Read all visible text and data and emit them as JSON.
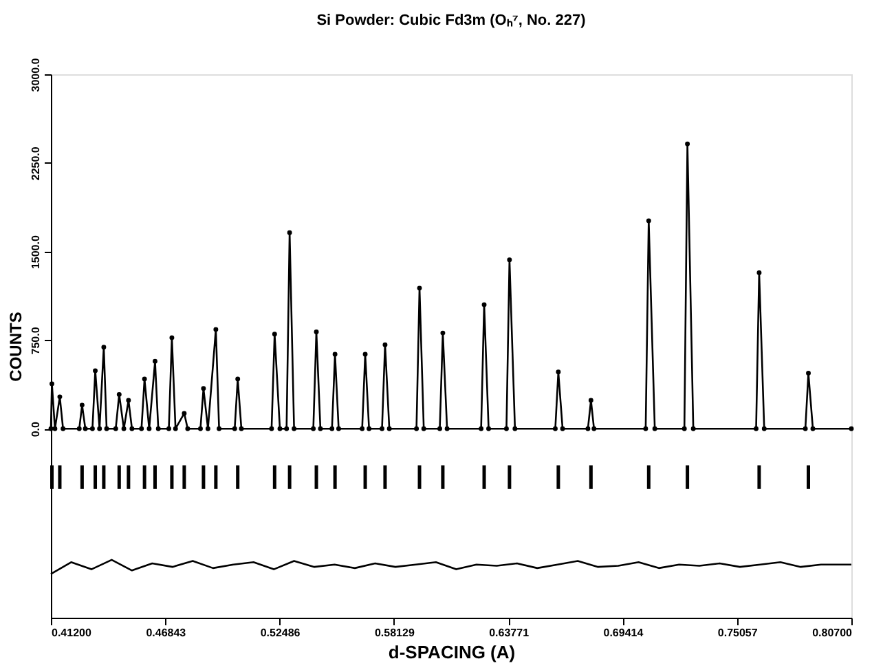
{
  "chart_data": {
    "type": "line",
    "title": "Si Powder:  Cubic Fd3m (Oₕ⁷, No. 227)",
    "xlabel": "d-SPACING (A)",
    "ylabel": "COUNTS",
    "xlim": [
      0.412,
      0.807
    ],
    "ylim": [
      -1600,
      3000
    ],
    "xticks": [
      {
        "value": 0.412,
        "label": "0.41200"
      },
      {
        "value": 0.46843,
        "label": "0.46843"
      },
      {
        "value": 0.52486,
        "label": "0.52486"
      },
      {
        "value": 0.58129,
        "label": "0.58129"
      },
      {
        "value": 0.63771,
        "label": "0.63771"
      },
      {
        "value": 0.69414,
        "label": "0.69414"
      },
      {
        "value": 0.75057,
        "label": "0.75057"
      },
      {
        "value": 0.807,
        "label": "0.80700"
      }
    ],
    "yticks": [
      {
        "value": 0,
        "label": "0.0"
      },
      {
        "value": 750,
        "label": "750.0"
      },
      {
        "value": 1500,
        "label": "1500.0"
      },
      {
        "value": 2250,
        "label": "2250.0"
      },
      {
        "value": 3000,
        "label": "3000.0"
      }
    ],
    "grid": false,
    "series": [
      {
        "marker": "circle",
        "color": "#000000",
        "x": [
          0.412,
          0.4125,
          0.414,
          0.4164,
          0.418,
          0.426,
          0.4274,
          0.429,
          0.4325,
          0.4339,
          0.436,
          0.4381,
          0.4395,
          0.444,
          0.4457,
          0.448,
          0.4503,
          0.452,
          0.4567,
          0.4582,
          0.4605,
          0.4634,
          0.465,
          0.4702,
          0.4717,
          0.4735,
          0.4778,
          0.4795,
          0.4858,
          0.4873,
          0.4895,
          0.4934,
          0.495,
          0.5027,
          0.5042,
          0.506,
          0.5209,
          0.5224,
          0.525,
          0.5283,
          0.5298,
          0.532,
          0.5415,
          0.543,
          0.545,
          0.5507,
          0.5522,
          0.554,
          0.5656,
          0.5671,
          0.569,
          0.5754,
          0.5769,
          0.579,
          0.5924,
          0.5939,
          0.596,
          0.6039,
          0.6054,
          0.6075,
          0.6243,
          0.6258,
          0.628,
          0.6368,
          0.6383,
          0.641,
          0.6609,
          0.6624,
          0.6645,
          0.677,
          0.6785,
          0.68,
          0.7055,
          0.707,
          0.71,
          0.7246,
          0.7261,
          0.729,
          0.76,
          0.7615,
          0.764,
          0.7843,
          0.7858,
          0.788,
          0.807
        ],
        "values": [
          0,
          380,
          0,
          270,
          0,
          0,
          200,
          0,
          0,
          490,
          0,
          690,
          0,
          0,
          290,
          0,
          240,
          0,
          0,
          420,
          0,
          570,
          0,
          0,
          770,
          0,
          130,
          0,
          0,
          340,
          0,
          840,
          0,
          0,
          420,
          0,
          0,
          800,
          0,
          0,
          1660,
          0,
          0,
          820,
          0,
          0,
          630,
          0,
          0,
          630,
          0,
          0,
          710,
          0,
          0,
          1190,
          0,
          0,
          810,
          0,
          0,
          1050,
          0,
          0,
          1430,
          0,
          0,
          480,
          0,
          0,
          240,
          0,
          0,
          1760,
          0,
          0,
          2410,
          0,
          0,
          1320,
          0,
          0,
          470,
          0,
          0
        ]
      },
      {
        "type": "bar",
        "color": "#000000",
        "base": [
          -510,
          -510,
          -510,
          -510,
          -510,
          -510,
          -510,
          -510,
          -510,
          -510,
          -510,
          -510,
          -510,
          -510,
          -510,
          -510,
          -510,
          -510,
          -510,
          -510,
          -510,
          -510,
          -510,
          -510,
          -510,
          -510,
          -510,
          -510,
          -510,
          -510
        ],
        "x": [
          0.4125,
          0.4164,
          0.4274,
          0.4339,
          0.4381,
          0.4457,
          0.4503,
          0.4582,
          0.4634,
          0.4717,
          0.4778,
          0.4873,
          0.4934,
          0.5042,
          0.5224,
          0.5298,
          0.543,
          0.5522,
          0.5671,
          0.5769,
          0.5939,
          0.6054,
          0.6258,
          0.6383,
          0.6624,
          0.6785,
          0.707,
          0.7261,
          0.7615,
          0.7858
        ],
        "values": [
          200,
          200,
          200,
          200,
          200,
          200,
          200,
          200,
          200,
          200,
          200,
          200,
          200,
          200,
          200,
          200,
          200,
          200,
          200,
          200,
          200,
          200,
          200,
          200,
          200,
          200,
          200,
          200,
          200,
          200
        ]
      },
      {
        "type": "line",
        "marker": "none",
        "color": "#000000",
        "x": [
          0.412,
          0.422,
          0.432,
          0.442,
          0.452,
          0.462,
          0.472,
          0.482,
          0.492,
          0.502,
          0.512,
          0.522,
          0.532,
          0.542,
          0.552,
          0.562,
          0.572,
          0.582,
          0.592,
          0.602,
          0.612,
          0.622,
          0.632,
          0.642,
          0.652,
          0.662,
          0.672,
          0.682,
          0.692,
          0.702,
          0.712,
          0.722,
          0.732,
          0.742,
          0.752,
          0.762,
          0.772,
          0.782,
          0.792,
          0.807
        ],
        "values": [
          -1230,
          -1130,
          -1190,
          -1110,
          -1200,
          -1140,
          -1170,
          -1120,
          -1180,
          -1150,
          -1130,
          -1190,
          -1120,
          -1170,
          -1150,
          -1180,
          -1140,
          -1170,
          -1150,
          -1130,
          -1190,
          -1150,
          -1160,
          -1140,
          -1180,
          -1150,
          -1120,
          -1170,
          -1160,
          -1130,
          -1180,
          -1150,
          -1160,
          -1140,
          -1170,
          -1150,
          -1130,
          -1170,
          -1150,
          -1150
        ]
      }
    ]
  }
}
